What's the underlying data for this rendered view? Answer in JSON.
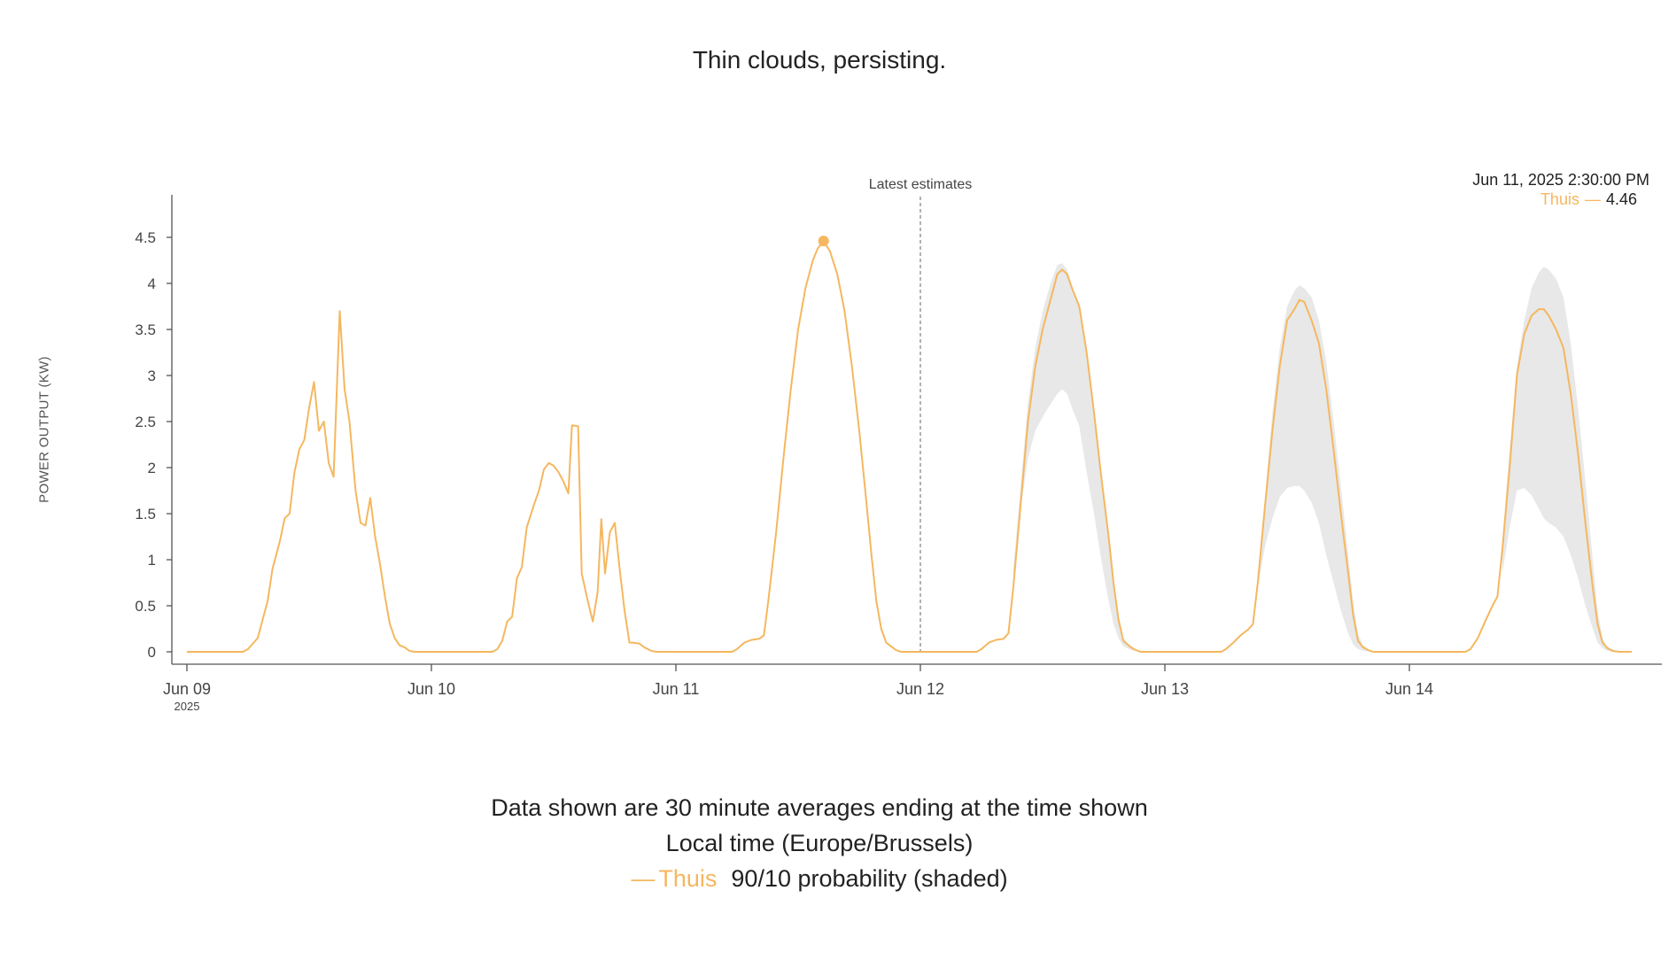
{
  "title": "Thin clouds, persisting.",
  "ylabel": "POWER OUTPUT (KW)",
  "tooltip": {
    "date": "Jun 11, 2025 2:30:00 PM",
    "series_name": "Thuis",
    "dash": "—",
    "value": "4.46"
  },
  "notes": {
    "line1": "Data shown are 30 minute averages ending at the time shown",
    "line2": "Local time (Europe/Brussels)",
    "legend_dash": "—",
    "legend_series": "Thuis",
    "legend_band": "90/10 probability (shaded)"
  },
  "colors": {
    "series": "#f5b75f",
    "band": "#e8e8e8",
    "axis": "#555555",
    "marker": "#888888"
  },
  "chart_data": {
    "type": "line",
    "xlabel": "",
    "ylabel": "POWER OUTPUT (KW)",
    "x_unit": "days since Jun 09 2025 00:00",
    "xlim": [
      0,
      6.06
    ],
    "ylim": [
      -0.15,
      4.95
    ],
    "y_ticks": [
      0,
      0.5,
      1,
      1.5,
      2,
      2.5,
      3,
      3.5,
      4,
      4.5
    ],
    "x_ticks": [
      {
        "x": 0,
        "label": "Jun 09",
        "sublabel": "2025"
      },
      {
        "x": 1,
        "label": "Jun 10"
      },
      {
        "x": 2,
        "label": "Jun 11"
      },
      {
        "x": 3,
        "label": "Jun 12"
      },
      {
        "x": 4,
        "label": "Jun 13"
      },
      {
        "x": 5,
        "label": "Jun 14"
      }
    ],
    "marker": {
      "x": 3,
      "label": "Latest estimates"
    },
    "highlight": {
      "x": 2.604,
      "y": 4.46
    },
    "series": [
      {
        "name": "Thuis",
        "points": [
          [
            0,
            0
          ],
          [
            0.23,
            0
          ],
          [
            0.25,
            0.03
          ],
          [
            0.29,
            0.15
          ],
          [
            0.33,
            0.55
          ],
          [
            0.35,
            0.9
          ],
          [
            0.38,
            1.2
          ],
          [
            0.4,
            1.45
          ],
          [
            0.42,
            1.5
          ],
          [
            0.44,
            1.95
          ],
          [
            0.46,
            2.2
          ],
          [
            0.48,
            2.3
          ],
          [
            0.5,
            2.65
          ],
          [
            0.52,
            2.93
          ],
          [
            0.54,
            2.4
          ],
          [
            0.56,
            2.5
          ],
          [
            0.58,
            2.05
          ],
          [
            0.6,
            1.9
          ],
          [
            0.625,
            3.7
          ],
          [
            0.645,
            2.85
          ],
          [
            0.665,
            2.5
          ],
          [
            0.69,
            1.75
          ],
          [
            0.71,
            1.4
          ],
          [
            0.73,
            1.37
          ],
          [
            0.75,
            1.67
          ],
          [
            0.77,
            1.25
          ],
          [
            0.79,
            0.95
          ],
          [
            0.81,
            0.6
          ],
          [
            0.83,
            0.3
          ],
          [
            0.85,
            0.15
          ],
          [
            0.87,
            0.07
          ],
          [
            0.89,
            0.05
          ],
          [
            0.91,
            0.01
          ],
          [
            0.93,
            0
          ],
          [
            1.25,
            0
          ],
          [
            1.27,
            0.03
          ],
          [
            1.29,
            0.12
          ],
          [
            1.31,
            0.33
          ],
          [
            1.33,
            0.38
          ],
          [
            1.35,
            0.8
          ],
          [
            1.37,
            0.92
          ],
          [
            1.39,
            1.35
          ],
          [
            1.42,
            1.6
          ],
          [
            1.44,
            1.75
          ],
          [
            1.46,
            1.98
          ],
          [
            1.48,
            2.05
          ],
          [
            1.5,
            2.02
          ],
          [
            1.52,
            1.95
          ],
          [
            1.54,
            1.85
          ],
          [
            1.56,
            1.72
          ],
          [
            1.575,
            2.46
          ],
          [
            1.6,
            2.45
          ],
          [
            1.615,
            0.85
          ],
          [
            1.64,
            0.55
          ],
          [
            1.66,
            0.33
          ],
          [
            1.68,
            0.65
          ],
          [
            1.695,
            1.44
          ],
          [
            1.71,
            0.85
          ],
          [
            1.73,
            1.3
          ],
          [
            1.75,
            1.4
          ],
          [
            1.77,
            0.9
          ],
          [
            1.79,
            0.45
          ],
          [
            1.81,
            0.1
          ],
          [
            1.82,
            0.1
          ],
          [
            1.85,
            0.09
          ],
          [
            1.87,
            0.05
          ],
          [
            1.9,
            0.01
          ],
          [
            1.92,
            0
          ],
          [
            2.23,
            0
          ],
          [
            2.25,
            0.03
          ],
          [
            2.28,
            0.1
          ],
          [
            2.31,
            0.13
          ],
          [
            2.34,
            0.14
          ],
          [
            2.36,
            0.18
          ],
          [
            2.38,
            0.6
          ],
          [
            2.41,
            1.3
          ],
          [
            2.44,
            2.1
          ],
          [
            2.47,
            2.85
          ],
          [
            2.5,
            3.5
          ],
          [
            2.53,
            3.95
          ],
          [
            2.56,
            4.25
          ],
          [
            2.58,
            4.38
          ],
          [
            2.604,
            4.46
          ],
          [
            2.63,
            4.35
          ],
          [
            2.66,
            4.1
          ],
          [
            2.69,
            3.7
          ],
          [
            2.72,
            3.1
          ],
          [
            2.75,
            2.4
          ],
          [
            2.78,
            1.6
          ],
          [
            2.8,
            1.05
          ],
          [
            2.82,
            0.55
          ],
          [
            2.84,
            0.25
          ],
          [
            2.86,
            0.1
          ],
          [
            2.88,
            0.06
          ],
          [
            2.9,
            0.02
          ],
          [
            2.92,
            0
          ],
          [
            3.23,
            0
          ],
          [
            3.25,
            0.03
          ],
          [
            3.28,
            0.1
          ],
          [
            3.31,
            0.13
          ],
          [
            3.34,
            0.14
          ],
          [
            3.36,
            0.2
          ],
          [
            3.38,
            0.7
          ],
          [
            3.41,
            1.6
          ],
          [
            3.44,
            2.5
          ],
          [
            3.47,
            3.1
          ],
          [
            3.5,
            3.5
          ],
          [
            3.53,
            3.8
          ],
          [
            3.56,
            4.1
          ],
          [
            3.58,
            4.15
          ],
          [
            3.6,
            4.1
          ],
          [
            3.62,
            3.95
          ],
          [
            3.65,
            3.75
          ],
          [
            3.68,
            3.25
          ],
          [
            3.71,
            2.6
          ],
          [
            3.74,
            1.9
          ],
          [
            3.77,
            1.25
          ],
          [
            3.79,
            0.75
          ],
          [
            3.81,
            0.35
          ],
          [
            3.83,
            0.12
          ],
          [
            3.86,
            0.05
          ],
          [
            3.88,
            0.02
          ],
          [
            3.9,
            0
          ],
          [
            4.23,
            0
          ],
          [
            4.25,
            0.03
          ],
          [
            4.28,
            0.1
          ],
          [
            4.31,
            0.18
          ],
          [
            4.34,
            0.24
          ],
          [
            4.36,
            0.3
          ],
          [
            4.38,
            0.75
          ],
          [
            4.41,
            1.6
          ],
          [
            4.44,
            2.4
          ],
          [
            4.47,
            3.1
          ],
          [
            4.5,
            3.6
          ],
          [
            4.53,
            3.72
          ],
          [
            4.55,
            3.82
          ],
          [
            4.57,
            3.8
          ],
          [
            4.6,
            3.6
          ],
          [
            4.63,
            3.35
          ],
          [
            4.66,
            2.85
          ],
          [
            4.69,
            2.2
          ],
          [
            4.72,
            1.5
          ],
          [
            4.75,
            0.85
          ],
          [
            4.77,
            0.4
          ],
          [
            4.79,
            0.12
          ],
          [
            4.81,
            0.05
          ],
          [
            4.83,
            0.02
          ],
          [
            4.85,
            0
          ],
          [
            5.23,
            0
          ],
          [
            5.25,
            0.03
          ],
          [
            5.28,
            0.15
          ],
          [
            5.31,
            0.33
          ],
          [
            5.34,
            0.5
          ],
          [
            5.36,
            0.6
          ],
          [
            5.38,
            1.1
          ],
          [
            5.41,
            2.0
          ],
          [
            5.44,
            3.0
          ],
          [
            5.47,
            3.45
          ],
          [
            5.5,
            3.65
          ],
          [
            5.53,
            3.72
          ],
          [
            5.55,
            3.72
          ],
          [
            5.57,
            3.65
          ],
          [
            5.6,
            3.5
          ],
          [
            5.63,
            3.3
          ],
          [
            5.66,
            2.8
          ],
          [
            5.69,
            2.15
          ],
          [
            5.72,
            1.4
          ],
          [
            5.75,
            0.7
          ],
          [
            5.77,
            0.3
          ],
          [
            5.79,
            0.1
          ],
          [
            5.81,
            0.04
          ],
          [
            5.83,
            0.01
          ],
          [
            5.86,
            0
          ],
          [
            5.91,
            0
          ]
        ]
      }
    ],
    "band": {
      "name": "90/10 probability (shaded)",
      "upper": [
        [
          3.38,
          0.9
        ],
        [
          3.41,
          1.8
        ],
        [
          3.44,
          2.7
        ],
        [
          3.47,
          3.3
        ],
        [
          3.5,
          3.7
        ],
        [
          3.53,
          3.98
        ],
        [
          3.56,
          4.2
        ],
        [
          3.58,
          4.22
        ],
        [
          3.6,
          4.15
        ],
        [
          3.62,
          3.98
        ],
        [
          3.65,
          3.75
        ],
        [
          3.68,
          3.25
        ],
        [
          3.71,
          2.6
        ],
        [
          3.74,
          1.9
        ],
        [
          3.77,
          1.25
        ],
        [
          3.79,
          0.8
        ],
        [
          3.81,
          0.4
        ],
        [
          3.83,
          0.15
        ],
        [
          3.86,
          0.05
        ],
        [
          3.9,
          0
        ],
        [
          4.38,
          0.85
        ],
        [
          4.41,
          1.7
        ],
        [
          4.44,
          2.6
        ],
        [
          4.47,
          3.3
        ],
        [
          4.5,
          3.75
        ],
        [
          4.53,
          3.92
        ],
        [
          4.55,
          3.98
        ],
        [
          4.57,
          3.95
        ],
        [
          4.6,
          3.85
        ],
        [
          4.63,
          3.6
        ],
        [
          4.66,
          3.15
        ],
        [
          4.69,
          2.5
        ],
        [
          4.72,
          1.8
        ],
        [
          4.75,
          1.05
        ],
        [
          4.77,
          0.55
        ],
        [
          4.79,
          0.2
        ],
        [
          4.81,
          0.07
        ],
        [
          4.85,
          0
        ],
        [
          5.38,
          1.2
        ],
        [
          5.41,
          2.2
        ],
        [
          5.44,
          3.1
        ],
        [
          5.47,
          3.6
        ],
        [
          5.5,
          3.95
        ],
        [
          5.53,
          4.12
        ],
        [
          5.55,
          4.18
        ],
        [
          5.57,
          4.15
        ],
        [
          5.6,
          4.05
        ],
        [
          5.63,
          3.85
        ],
        [
          5.66,
          3.35
        ],
        [
          5.69,
          2.65
        ],
        [
          5.72,
          1.85
        ],
        [
          5.75,
          1.0
        ],
        [
          5.77,
          0.45
        ],
        [
          5.79,
          0.15
        ],
        [
          5.81,
          0.05
        ],
        [
          5.86,
          0
        ]
      ],
      "lower": [
        [
          3.38,
          0.7
        ],
        [
          3.41,
          1.55
        ],
        [
          3.44,
          2.1
        ],
        [
          3.47,
          2.4
        ],
        [
          3.5,
          2.55
        ],
        [
          3.53,
          2.68
        ],
        [
          3.56,
          2.8
        ],
        [
          3.58,
          2.85
        ],
        [
          3.6,
          2.8
        ],
        [
          3.62,
          2.65
        ],
        [
          3.65,
          2.45
        ],
        [
          3.68,
          1.95
        ],
        [
          3.71,
          1.5
        ],
        [
          3.74,
          1.0
        ],
        [
          3.77,
          0.55
        ],
        [
          3.79,
          0.3
        ],
        [
          3.81,
          0.15
        ],
        [
          3.83,
          0.06
        ],
        [
          3.86,
          0.02
        ],
        [
          3.9,
          0
        ],
        [
          4.38,
          0.7
        ],
        [
          4.41,
          1.15
        ],
        [
          4.44,
          1.45
        ],
        [
          4.47,
          1.68
        ],
        [
          4.5,
          1.78
        ],
        [
          4.53,
          1.8
        ],
        [
          4.55,
          1.8
        ],
        [
          4.57,
          1.75
        ],
        [
          4.6,
          1.62
        ],
        [
          4.63,
          1.4
        ],
        [
          4.66,
          1.05
        ],
        [
          4.69,
          0.75
        ],
        [
          4.72,
          0.45
        ],
        [
          4.75,
          0.2
        ],
        [
          4.77,
          0.08
        ],
        [
          4.79,
          0.03
        ],
        [
          4.81,
          0.01
        ],
        [
          4.85,
          0
        ],
        [
          5.38,
          0.85
        ],
        [
          5.41,
          1.35
        ],
        [
          5.44,
          1.75
        ],
        [
          5.47,
          1.78
        ],
        [
          5.5,
          1.7
        ],
        [
          5.53,
          1.55
        ],
        [
          5.55,
          1.45
        ],
        [
          5.57,
          1.4
        ],
        [
          5.6,
          1.35
        ],
        [
          5.63,
          1.25
        ],
        [
          5.66,
          1.05
        ],
        [
          5.69,
          0.8
        ],
        [
          5.72,
          0.5
        ],
        [
          5.75,
          0.25
        ],
        [
          5.77,
          0.1
        ],
        [
          5.79,
          0.04
        ],
        [
          5.81,
          0.01
        ],
        [
          5.86,
          0
        ]
      ]
    }
  }
}
